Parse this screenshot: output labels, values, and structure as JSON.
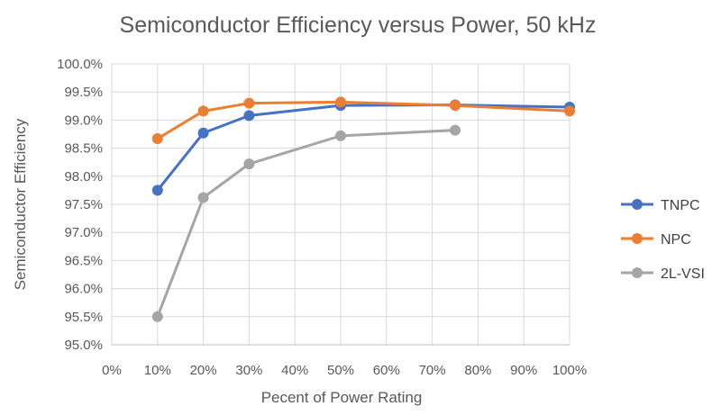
{
  "chart_data": {
    "type": "line",
    "title": "Semiconductor Efficiency versus Power, 50 kHz",
    "xlabel": "Pecent of Power Rating",
    "ylabel": "Semiconductor Efficiency",
    "xlim": [
      0,
      100
    ],
    "ylim": [
      95.0,
      100.0
    ],
    "x_ticks": [
      0,
      10,
      20,
      30,
      40,
      50,
      60,
      70,
      80,
      90,
      100
    ],
    "x_tick_labels": [
      "0%",
      "10%",
      "20%",
      "30%",
      "40%",
      "50%",
      "60%",
      "70%",
      "80%",
      "90%",
      "100%"
    ],
    "y_ticks": [
      95.0,
      95.5,
      96.0,
      96.5,
      97.0,
      97.5,
      98.0,
      98.5,
      99.0,
      99.5,
      100.0
    ],
    "y_tick_labels": [
      "95.0%",
      "95.5%",
      "96.0%",
      "96.5%",
      "97.0%",
      "97.5%",
      "98.0%",
      "98.5%",
      "99.0%",
      "99.5%",
      "100.0%"
    ],
    "grid": true,
    "legend_position": "right",
    "series": [
      {
        "name": "TNPC",
        "color": "#4472c4",
        "x": [
          10,
          20,
          30,
          50,
          75,
          100
        ],
        "y": [
          97.75,
          98.77,
          99.08,
          99.26,
          99.27,
          99.23
        ]
      },
      {
        "name": "NPC",
        "color": "#ed7d31",
        "x": [
          10,
          20,
          30,
          50,
          75,
          100
        ],
        "y": [
          98.67,
          99.16,
          99.3,
          99.32,
          99.26,
          99.16
        ]
      },
      {
        "name": "2L-VSI",
        "color": "#a5a5a5",
        "x": [
          10,
          20,
          30,
          50,
          75
        ],
        "y": [
          95.5,
          97.62,
          98.22,
          98.72,
          98.82
        ]
      }
    ]
  }
}
